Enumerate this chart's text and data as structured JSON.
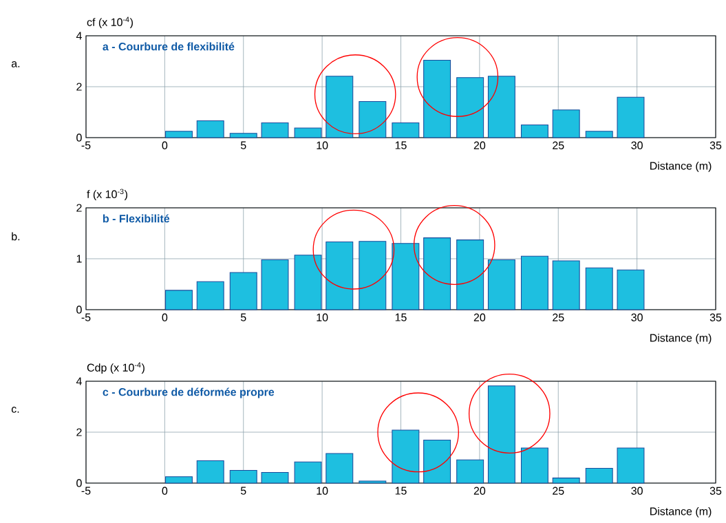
{
  "chart_data": [
    {
      "type": "bar",
      "title": "a - Courbure de flexibilité",
      "ylabel": "cf (x 10$^{-4}$)",
      "xlabel": "Distance (m)",
      "annotations": [
        "a."
      ],
      "x": [
        0.9,
        2.9,
        5.0,
        7.0,
        9.1,
        11.1,
        13.2,
        15.3,
        17.3,
        19.4,
        21.4,
        23.5,
        25.5,
        27.6,
        29.6
      ],
      "values": [
        0.25,
        0.66,
        0.17,
        0.58,
        0.38,
        2.41,
        1.42,
        0.58,
        3.04,
        2.36,
        2.41,
        0.5,
        1.09,
        0.25,
        1.59
      ],
      "color": "#1ebfe0",
      "xlim": [
        -5,
        35
      ],
      "xticks": [
        -5,
        0,
        5,
        10,
        15,
        20,
        25,
        30,
        35
      ],
      "ylim": [
        0,
        4
      ],
      "yticks": [
        0,
        2,
        4
      ],
      "grid": true
    },
    {
      "type": "bar",
      "title": "b - Flexibilité",
      "ylabel": "f (x 10$^{-3}$)",
      "xlabel": "Distance (m)",
      "annotations": [
        "b."
      ],
      "x": [
        0.9,
        2.9,
        5.0,
        7.0,
        9.1,
        11.1,
        13.2,
        15.3,
        17.3,
        19.4,
        21.4,
        23.5,
        25.5,
        27.6,
        29.6
      ],
      "values": [
        0.38,
        0.55,
        0.73,
        0.98,
        1.07,
        1.33,
        1.34,
        1.3,
        1.41,
        1.37,
        0.98,
        1.05,
        0.96,
        0.82,
        0.78
      ],
      "color": "#1ebfe0",
      "xlim": [
        -5,
        35
      ],
      "xticks": [
        -5,
        0,
        5,
        10,
        15,
        20,
        25,
        30,
        35
      ],
      "ylim": [
        0,
        2
      ],
      "yticks": [
        0,
        1,
        2
      ],
      "grid": true
    },
    {
      "type": "bar",
      "title": "c - Courbure de déformée propre",
      "ylabel": "Cdp (x 10$^{-4}$)",
      "xlabel": "Distance (m)",
      "annotations": [
        "c."
      ],
      "x": [
        0.9,
        2.9,
        5.0,
        7.0,
        9.1,
        11.1,
        13.2,
        15.3,
        17.3,
        19.4,
        21.4,
        23.5,
        25.5,
        27.6,
        29.6
      ],
      "values": [
        0.25,
        0.88,
        0.5,
        0.42,
        0.83,
        1.16,
        0.08,
        2.08,
        1.69,
        0.91,
        3.82,
        1.38,
        0.2,
        0.58,
        1.38
      ],
      "color": "#1ebfe0",
      "xlim": [
        -5,
        35
      ],
      "xticks": [
        -5,
        0,
        5,
        10,
        15,
        20,
        25,
        30,
        35
      ],
      "ylim": [
        0,
        4
      ],
      "yticks": [
        0,
        2,
        4
      ],
      "grid": true
    }
  ]
}
